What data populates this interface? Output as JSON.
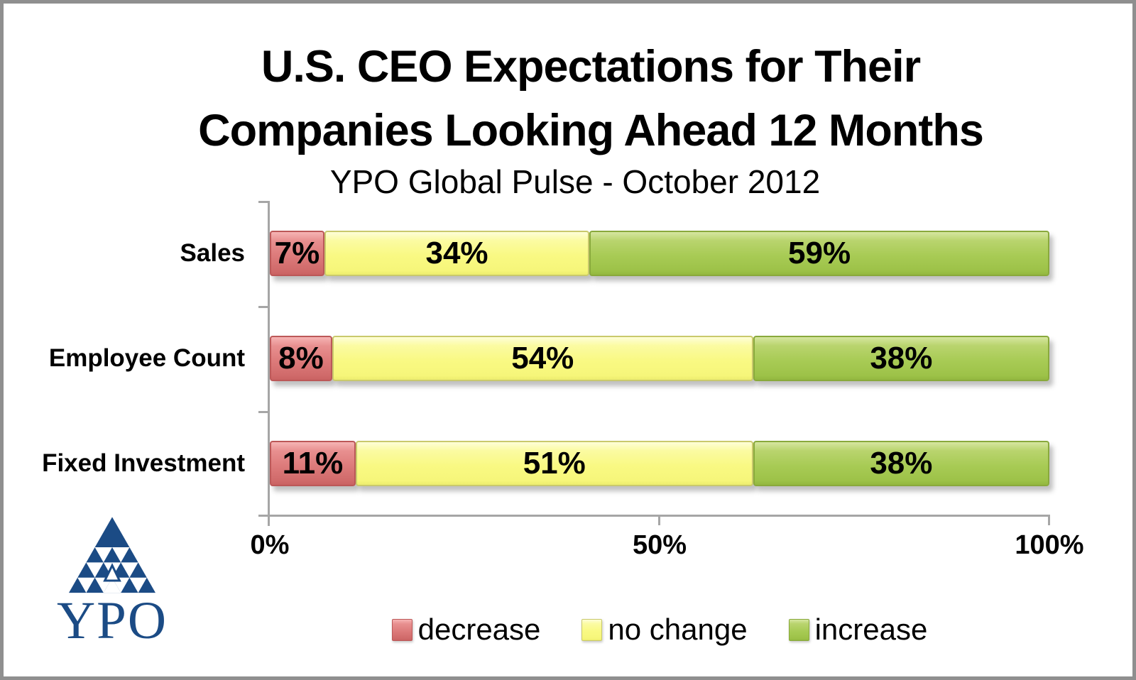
{
  "title": {
    "line1": "U.S. CEO Expectations for Their",
    "line2": "Companies Looking Ahead 12 Months",
    "subtitle": "YPO Global Pulse - October 2012"
  },
  "logo": {
    "text": "YPO",
    "color": "#1B4B85",
    "mark": "triangle-fractal"
  },
  "colors": {
    "decrease": "#DD7B7B",
    "no_change": "#F9F983",
    "increase": "#A8CB55",
    "axis": "#A6A6A6",
    "text": "#000000"
  },
  "chart_data": {
    "type": "bar",
    "orientation": "horizontal",
    "stacked": true,
    "title": "U.S. CEO Expectations for Their Companies Looking Ahead 12 Months",
    "subtitle": "YPO Global Pulse - October 2012",
    "categories": [
      "Sales",
      "Employee Count",
      "Fixed Investment"
    ],
    "series": [
      {
        "name": "decrease",
        "color": "#DD7B7B",
        "values": [
          7,
          8,
          11
        ]
      },
      {
        "name": "no change",
        "color": "#F9F983",
        "values": [
          34,
          54,
          51
        ]
      },
      {
        "name": "increase",
        "color": "#A8CB55",
        "values": [
          59,
          38,
          38
        ]
      }
    ],
    "value_suffix": "%",
    "xlim": [
      0,
      100
    ],
    "x_ticks": [
      "0%",
      "50%",
      "100%"
    ],
    "grid": false,
    "legend": [
      "decrease",
      "no change",
      "increase"
    ],
    "legend_position": "bottom",
    "data_labels": "inside-center"
  }
}
